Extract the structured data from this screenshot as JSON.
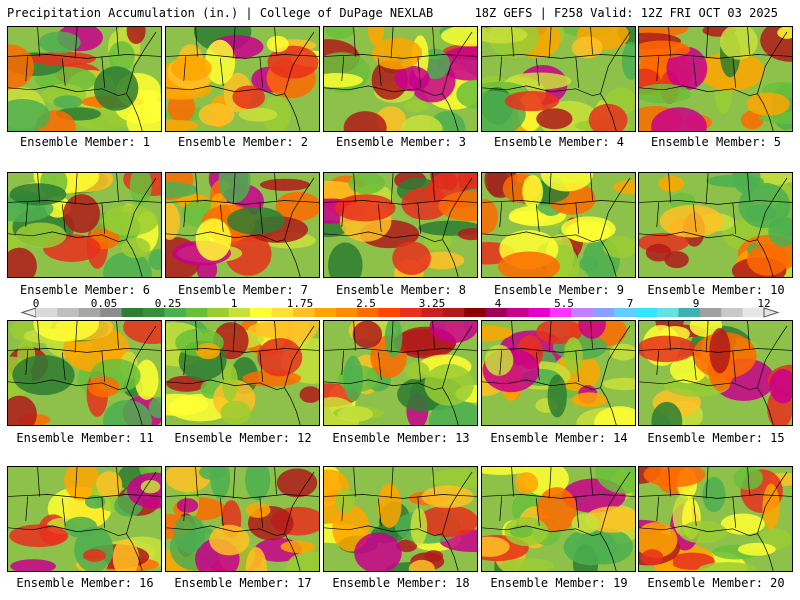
{
  "header": {
    "left": "Precipitation Accumulation (in.) | College of DuPage NEXLAB",
    "right": "18Z GEFS | F258 Valid: 12Z FRI OCT 03 2025"
  },
  "colorbar": {
    "tick_labels": [
      "0",
      "0.05",
      "0.25",
      "1",
      "1.75",
      "2.5",
      "3.25",
      "4",
      "5.5",
      "7",
      "9",
      "12"
    ],
    "colors": [
      "#d9d9d9",
      "#bfbfbf",
      "#a6a6a6",
      "#8c8c8c",
      "#2e7d32",
      "#388e3c",
      "#4caf50",
      "#6abf3a",
      "#9acd32",
      "#c8e03a",
      "#ffff33",
      "#ffe135",
      "#ffc125",
      "#ffa500",
      "#ff8c00",
      "#ff6a00",
      "#ff4500",
      "#e8301c",
      "#cc1f1f",
      "#b01a1a",
      "#8b0000",
      "#a0005a",
      "#c8008c",
      "#e600c8",
      "#ff33ff",
      "#c080ff",
      "#8aa0ff",
      "#66ccff",
      "#33e6ff",
      "#66e0e0",
      "#40b0b0",
      "#a0a0a0",
      "#c8c8c8",
      "#e6e6e6"
    ]
  },
  "members": [
    {
      "label": "Ensemble Member: 1"
    },
    {
      "label": "Ensemble Member: 2"
    },
    {
      "label": "Ensemble Member: 3"
    },
    {
      "label": "Ensemble Member: 4"
    },
    {
      "label": "Ensemble Member: 5"
    },
    {
      "label": "Ensemble Member: 6"
    },
    {
      "label": "Ensemble Member: 7"
    },
    {
      "label": "Ensemble Member: 8"
    },
    {
      "label": "Ensemble Member: 9"
    },
    {
      "label": "Ensemble Member: 10"
    },
    {
      "label": "Ensemble Member: 11"
    },
    {
      "label": "Ensemble Member: 12"
    },
    {
      "label": "Ensemble Member: 13"
    },
    {
      "label": "Ensemble Member: 14"
    },
    {
      "label": "Ensemble Member: 15"
    },
    {
      "label": "Ensemble Member: 16"
    },
    {
      "label": "Ensemble Member: 17"
    },
    {
      "label": "Ensemble Member: 18"
    },
    {
      "label": "Ensemble Member: 19"
    },
    {
      "label": "Ensemble Member: 20"
    }
  ]
}
